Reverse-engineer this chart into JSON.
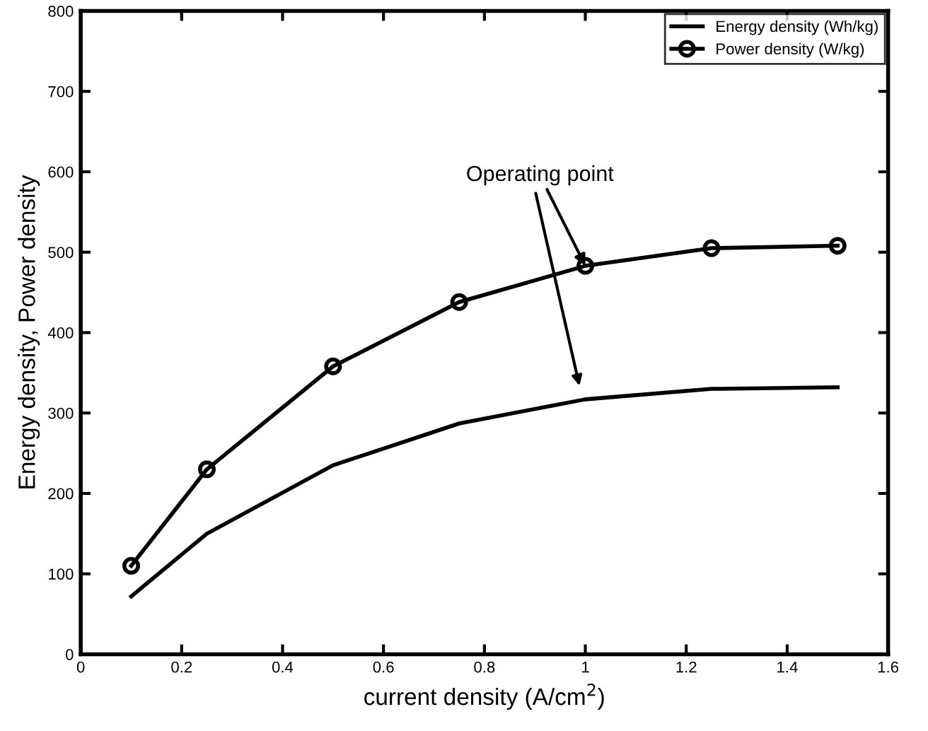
{
  "chart_data": {
    "type": "line",
    "xlabel": "current density (A/cm$^{2}$)",
    "ylabel": "Energy density, Power density",
    "x": [
      0.1,
      0.25,
      0.5,
      0.75,
      1.0,
      1.25,
      1.5
    ],
    "series": [
      {
        "name": "Energy density (Wh/kg)",
        "color": "#000000",
        "marker": "none",
        "values": [
          72,
          150,
          235,
          287,
          317,
          330,
          332
        ]
      },
      {
        "name": "Power density (W/kg)",
        "color": "#000000",
        "marker": "circle",
        "values": [
          110,
          230,
          358,
          438,
          483,
          505,
          508
        ]
      }
    ],
    "xlim": [
      0,
      1.6
    ],
    "xticks": [
      0,
      0.2,
      0.4,
      0.6,
      0.8,
      1,
      1.2,
      1.4,
      1.6
    ],
    "ylim": [
      0,
      800
    ],
    "yticks": [
      0,
      100,
      200,
      300,
      400,
      500,
      600,
      700,
      800
    ],
    "annotations": [
      {
        "text": "Operating point",
        "x": 1.0,
        "y": 483
      }
    ],
    "grid": false,
    "legend": "top right",
    "line_style": "solid"
  }
}
